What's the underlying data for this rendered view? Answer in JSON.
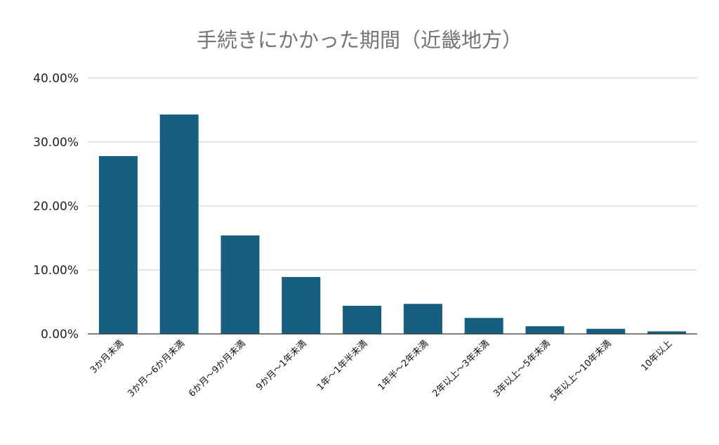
{
  "chart_data": {
    "type": "bar",
    "title": "手続きにかかった期間（近畿地方）",
    "xlabel": "",
    "ylabel": "",
    "ylim": [
      0,
      40
    ],
    "yticks": [
      0,
      10,
      20,
      30,
      40
    ],
    "ytick_labels": [
      "0.00%",
      "10.00%",
      "20.00%",
      "30.00%",
      "40.00%"
    ],
    "grid": true,
    "legend": "none",
    "categories": [
      "3か月未満",
      "3か月～6か月未満",
      "6か月～9か月未満",
      "9か月～1年未満",
      "1年～1年半未満",
      "1年半～2年未満",
      "2年以上～3年未満",
      "3年以上～5年未満",
      "5年以上～10年未満",
      "10年以上"
    ],
    "values": [
      27.8,
      34.3,
      15.4,
      8.9,
      4.4,
      4.7,
      2.5,
      1.2,
      0.8,
      0.4
    ],
    "bar_color": "#155e80"
  }
}
